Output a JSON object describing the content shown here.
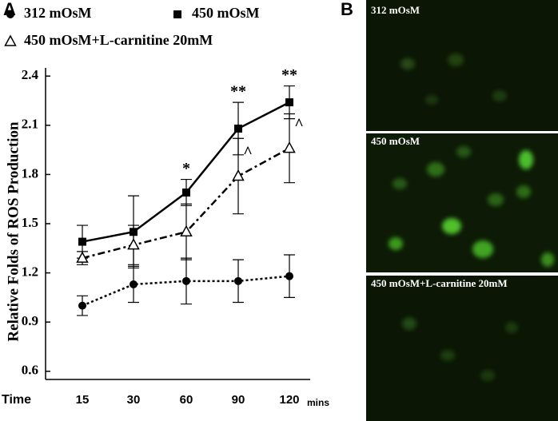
{
  "chart_data": {
    "type": "line",
    "panel": "A",
    "y_label": "Relative Folds of ROS Production",
    "x_label": "Time",
    "x_unit": "mins",
    "categories": [
      "15",
      "30",
      "60",
      "90",
      "120"
    ],
    "ylim": [
      0.55,
      2.45
    ],
    "yticks": [
      0.6,
      0.9,
      1.2,
      1.5,
      1.8,
      2.1,
      2.4
    ],
    "series": [
      {
        "name": "312 mOsM",
        "color": "#000000",
        "marker": "circle",
        "dash": "dotted",
        "values": [
          1.0,
          1.13,
          1.15,
          1.15,
          1.18
        ],
        "errors": [
          0.06,
          0.11,
          0.14,
          0.13,
          0.13
        ]
      },
      {
        "name": "450 mOsM",
        "color": "#000000",
        "marker": "square",
        "dash": "solid",
        "values": [
          1.39,
          1.45,
          1.69,
          2.08,
          2.24
        ],
        "errors": [
          0.1,
          0.22,
          0.08,
          0.16,
          0.1
        ]
      },
      {
        "name": "450 mOsM+L-carnitine 20mM",
        "color": "#000000",
        "marker": "triangle-open",
        "dash": "dash-dot",
        "values": [
          1.29,
          1.37,
          1.45,
          1.79,
          1.96
        ],
        "errors": [
          0.04,
          0.12,
          0.17,
          0.23,
          0.21
        ]
      }
    ],
    "annotations": [
      {
        "text": "*"
      },
      {
        "text": "**"
      },
      {
        "text": "**"
      },
      {
        "text": "^"
      },
      {
        "text": "^"
      }
    ]
  },
  "panel_b": {
    "letter": "B",
    "images": [
      {
        "label": "312 mOsM"
      },
      {
        "label": "450 mOsM"
      },
      {
        "label": "450 mOsM+L-carnitine  20mM"
      }
    ]
  }
}
